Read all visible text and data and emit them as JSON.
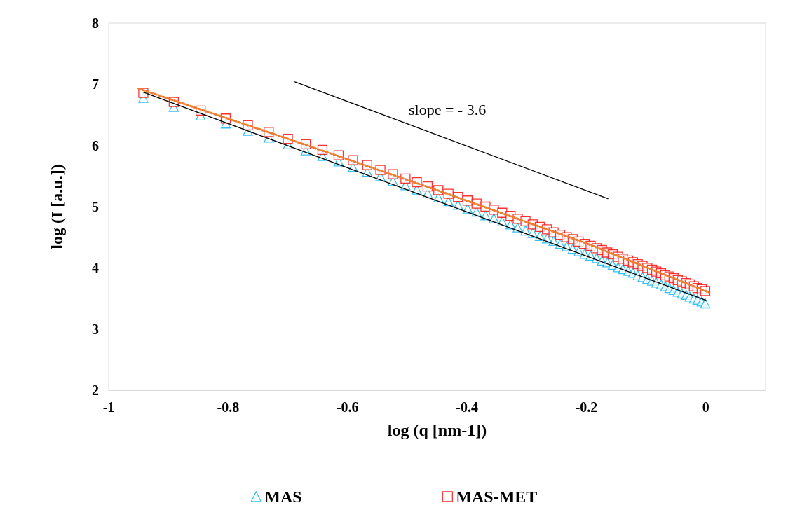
{
  "chart_data": {
    "type": "scatter",
    "xlabel": "log (q [nm-1])",
    "ylabel": "log (I [a.u.])",
    "xlim": [
      -1,
      0.1
    ],
    "xticks": [
      -1,
      -0.8,
      -0.6,
      -0.4,
      -0.2,
      0
    ],
    "ylim": [
      2,
      8
    ],
    "yticks": [
      2,
      3,
      4,
      5,
      6,
      7,
      8
    ],
    "grid": false,
    "legend": "bottom",
    "x": [
      -0.942,
      -0.891,
      -0.846,
      -0.804,
      -0.767,
      -0.732,
      -0.7,
      -0.67,
      -0.642,
      -0.615,
      -0.591,
      -0.567,
      -0.545,
      -0.524,
      -0.503,
      -0.484,
      -0.466,
      -0.448,
      -0.431,
      -0.415,
      -0.399,
      -0.384,
      -0.369,
      -0.355,
      -0.341,
      -0.327,
      -0.315,
      -0.302,
      -0.29,
      -0.278,
      -0.266,
      -0.255,
      -0.244,
      -0.233,
      -0.223,
      -0.213,
      -0.203,
      -0.193,
      -0.183,
      -0.174,
      -0.165,
      -0.156,
      -0.147,
      -0.139,
      -0.13,
      -0.122,
      -0.114,
      -0.106,
      -0.098,
      -0.09,
      -0.083,
      -0.075,
      -0.068,
      -0.061,
      -0.054,
      -0.047,
      -0.04,
      -0.033,
      -0.027,
      -0.02,
      -0.014,
      -0.007,
      -0.001
    ],
    "series": [
      {
        "name": "MAS",
        "color": "#00b0f0",
        "marker": "triangle",
        "values": [
          6.78,
          6.63,
          6.49,
          6.36,
          6.24,
          6.13,
          6.02,
          5.92,
          5.83,
          5.74,
          5.65,
          5.57,
          5.5,
          5.42,
          5.35,
          5.28,
          5.22,
          5.15,
          5.09,
          5.03,
          4.97,
          4.92,
          4.86,
          4.81,
          4.76,
          4.71,
          4.66,
          4.61,
          4.57,
          4.52,
          4.48,
          4.44,
          4.39,
          4.35,
          4.31,
          4.27,
          4.23,
          4.2,
          4.16,
          4.12,
          4.09,
          4.05,
          4.01,
          3.98,
          3.95,
          3.92,
          3.88,
          3.85,
          3.82,
          3.79,
          3.76,
          3.73,
          3.7,
          3.67,
          3.64,
          3.61,
          3.58,
          3.56,
          3.53,
          3.5,
          3.48,
          3.45,
          3.42
        ]
      },
      {
        "name": "MAS-MET",
        "color": "#ff0000",
        "marker": "square",
        "values": [
          6.86,
          6.71,
          6.57,
          6.44,
          6.33,
          6.22,
          6.11,
          6.02,
          5.93,
          5.84,
          5.76,
          5.68,
          5.6,
          5.53,
          5.46,
          5.4,
          5.33,
          5.27,
          5.21,
          5.16,
          5.1,
          5.05,
          5.0,
          4.95,
          4.9,
          4.85,
          4.8,
          4.76,
          4.71,
          4.67,
          4.63,
          4.58,
          4.54,
          4.5,
          4.47,
          4.43,
          4.39,
          4.36,
          4.32,
          4.29,
          4.25,
          4.22,
          4.18,
          4.15,
          4.12,
          4.09,
          4.06,
          4.03,
          4.0,
          3.97,
          3.94,
          3.91,
          3.88,
          3.86,
          3.83,
          3.8,
          3.78,
          3.75,
          3.73,
          3.7,
          3.67,
          3.65,
          3.62
        ]
      },
      {
        "type": "line",
        "color": "#000000",
        "line_style": "solid",
        "marker": "none",
        "x": [
          -0.942,
          0.0
        ],
        "values": [
          6.87,
          3.47
        ]
      },
      {
        "type": "line",
        "color": "#ed7d31",
        "line_style": "dotted",
        "marker": "none",
        "x": [
          -0.95,
          -0.7,
          -0.45,
          -0.2,
          0.005
        ],
        "values": [
          6.93,
          6.11,
          5.27,
          4.4,
          3.6
        ]
      },
      {
        "type": "line",
        "color": "#000000",
        "line_style": "solid",
        "marker": "none",
        "x": [
          -0.688,
          -0.164
        ],
        "values": [
          7.04,
          5.13
        ]
      }
    ],
    "annotations": [
      "slope = - 3.6"
    ]
  }
}
